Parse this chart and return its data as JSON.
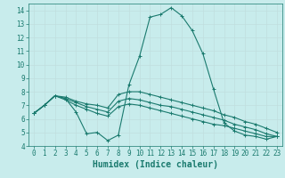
{
  "xlabel": "Humidex (Indice chaleur)",
  "background_color": "#c8ecec",
  "line_color": "#1a7a6e",
  "grid_color": "#c0dede",
  "xlim": [
    -0.5,
    23.5
  ],
  "ylim": [
    4,
    14.5
  ],
  "yticks": [
    4,
    5,
    6,
    7,
    8,
    9,
    10,
    11,
    12,
    13,
    14
  ],
  "xticks": [
    0,
    1,
    2,
    3,
    4,
    5,
    6,
    7,
    8,
    9,
    10,
    11,
    12,
    13,
    14,
    15,
    16,
    17,
    18,
    19,
    20,
    21,
    22,
    23
  ],
  "series": [
    {
      "x": [
        0,
        1,
        2,
        3,
        4,
        5,
        6,
        7,
        8,
        9,
        10,
        11,
        12,
        13,
        14,
        15,
        16,
        17,
        18,
        19,
        20,
        21,
        22,
        23
      ],
      "y": [
        6.4,
        7.0,
        7.7,
        7.5,
        6.5,
        4.9,
        5.0,
        4.4,
        4.8,
        8.5,
        10.6,
        13.5,
        13.7,
        14.2,
        13.6,
        12.5,
        10.8,
        8.2,
        5.7,
        5.1,
        4.8,
        4.7,
        4.5,
        4.7
      ]
    },
    {
      "x": [
        0,
        1,
        2,
        3,
        4,
        5,
        6,
        7,
        8,
        9,
        10,
        11,
        12,
        13,
        14,
        15,
        16,
        17,
        18,
        19,
        20,
        21,
        22,
        23
      ],
      "y": [
        6.4,
        7.0,
        7.7,
        7.6,
        7.3,
        7.1,
        7.0,
        6.8,
        7.8,
        8.0,
        8.0,
        7.8,
        7.6,
        7.4,
        7.2,
        7.0,
        6.8,
        6.6,
        6.3,
        6.1,
        5.8,
        5.6,
        5.3,
        5.0
      ]
    },
    {
      "x": [
        0,
        1,
        2,
        3,
        4,
        5,
        6,
        7,
        8,
        9,
        10,
        11,
        12,
        13,
        14,
        15,
        16,
        17,
        18,
        19,
        20,
        21,
        22,
        23
      ],
      "y": [
        6.4,
        7.0,
        7.7,
        7.5,
        7.2,
        6.9,
        6.7,
        6.5,
        7.3,
        7.5,
        7.4,
        7.2,
        7.0,
        6.9,
        6.7,
        6.5,
        6.3,
        6.1,
        5.9,
        5.6,
        5.4,
        5.2,
        4.9,
        4.7
      ]
    },
    {
      "x": [
        0,
        1,
        2,
        3,
        4,
        5,
        6,
        7,
        8,
        9,
        10,
        11,
        12,
        13,
        14,
        15,
        16,
        17,
        18,
        19,
        20,
        21,
        22,
        23
      ],
      "y": [
        6.4,
        7.0,
        7.7,
        7.4,
        7.0,
        6.7,
        6.4,
        6.2,
        6.9,
        7.1,
        7.0,
        6.8,
        6.6,
        6.4,
        6.2,
        6.0,
        5.8,
        5.6,
        5.5,
        5.3,
        5.1,
        4.9,
        4.7,
        4.7
      ]
    }
  ],
  "marker": "+",
  "markersize": 3,
  "linewidth": 0.8,
  "tick_fontsize": 5.5,
  "xlabel_fontsize": 7.0
}
